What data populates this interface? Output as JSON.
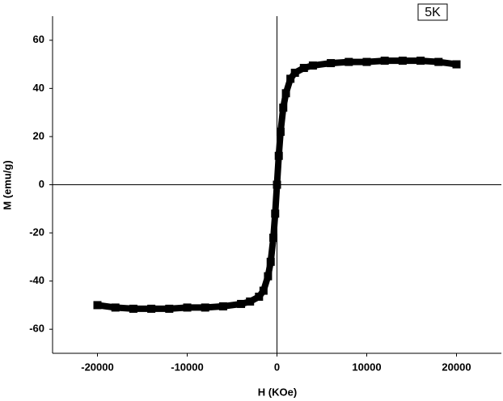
{
  "chart_data": {
    "type": "scatter",
    "x_label": "H (KOe)",
    "y_label": "M (emu/g)",
    "series": [
      {
        "name": "5K",
        "color": "#000000",
        "x": [
          -20000,
          -18000,
          -16000,
          -14000,
          -12000,
          -10000,
          -8000,
          -6000,
          -4000,
          -3000,
          -2000,
          -1500,
          -1000,
          -700,
          -400,
          -200,
          0,
          200,
          400,
          700,
          1000,
          1500,
          2000,
          3000,
          4000,
          6000,
          8000,
          10000,
          12000,
          14000,
          16000,
          18000,
          20000
        ],
        "values": [
          -50,
          -51,
          -51.5,
          -51.5,
          -51.5,
          -51,
          -51,
          -50.5,
          -49.5,
          -48.5,
          -46.5,
          -44,
          -38,
          -32,
          -22,
          -12,
          0,
          12,
          22,
          32,
          38,
          44,
          46.5,
          48.5,
          49.5,
          50.5,
          51,
          51,
          51.5,
          51.5,
          51.5,
          51,
          50
        ]
      }
    ],
    "xlim": [
      -25000,
      25000
    ],
    "ylim": [
      -70,
      70
    ],
    "xticks": [
      -20000,
      -10000,
      0,
      10000,
      20000
    ],
    "yticks": [
      -60,
      -40,
      -20,
      0,
      20,
      40,
      60
    ],
    "grid": false,
    "legend": "upper right"
  }
}
